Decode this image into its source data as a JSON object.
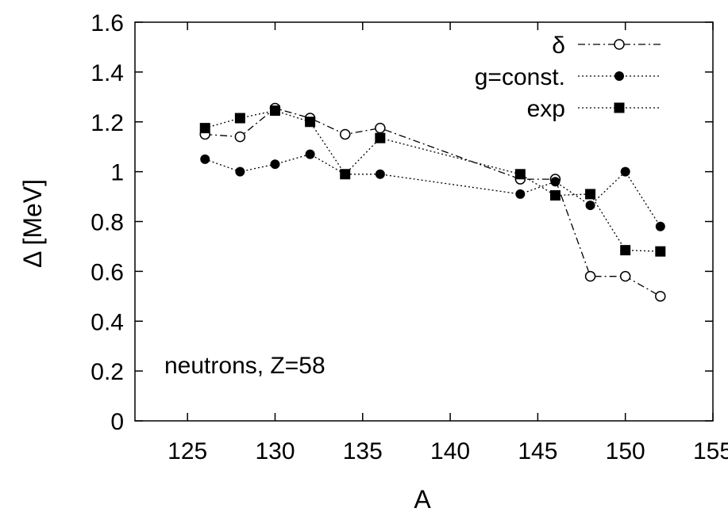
{
  "chart_data": {
    "type": "line",
    "xlabel": "A",
    "ylabel": "Δ [MeV]",
    "xlim": [
      122,
      155
    ],
    "ylim": [
      0,
      1.6
    ],
    "xticks": [
      125,
      130,
      135,
      140,
      145,
      150,
      155
    ],
    "yticks": [
      0,
      0.2,
      0.4,
      0.6,
      0.8,
      1,
      1.2,
      1.4,
      1.6
    ],
    "ytick_labels": [
      "0",
      "0.2",
      "0.4",
      "0.6",
      "0.8",
      "1",
      "1.2",
      "1.4",
      "1.6"
    ],
    "grid": false,
    "legend_position": "top-right",
    "annotation": "neutrons, Z=58",
    "series": [
      {
        "name": "δ",
        "marker": "open-circle",
        "line": "dash-dot",
        "x": [
          126,
          128,
          130,
          132,
          134,
          136,
          144,
          146,
          148,
          150,
          152
        ],
        "y": [
          1.15,
          1.14,
          1.255,
          1.215,
          1.15,
          1.175,
          0.97,
          0.97,
          0.58,
          0.58,
          0.5
        ]
      },
      {
        "name": "g=const.",
        "marker": "filled-circle",
        "line": "dotted",
        "x": [
          126,
          128,
          130,
          132,
          134,
          136,
          144,
          146,
          148,
          150,
          152
        ],
        "y": [
          1.05,
          1.0,
          1.03,
          1.07,
          0.99,
          0.99,
          0.91,
          0.96,
          0.865,
          1.0,
          0.78
        ]
      },
      {
        "name": "exp",
        "marker": "filled-square",
        "line": "dotted",
        "x": [
          126,
          128,
          130,
          132,
          134,
          136,
          144,
          146,
          148,
          150,
          152
        ],
        "y": [
          1.175,
          1.215,
          1.245,
          1.2,
          0.99,
          1.135,
          0.99,
          0.905,
          0.91,
          0.685,
          0.68
        ]
      }
    ]
  }
}
